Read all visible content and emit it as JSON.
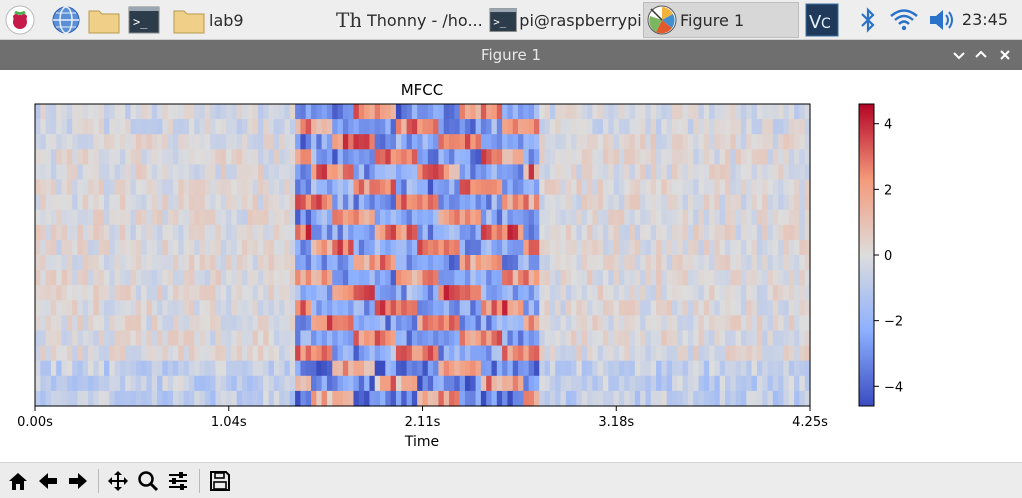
{
  "taskbar": {
    "items": [
      {
        "label": "lab9"
      },
      {
        "label": "Thonny  -  /ho..."
      },
      {
        "label": "pi@raspberrypi..."
      },
      {
        "label": "Figure 1"
      }
    ],
    "clock": "23:45",
    "icons": [
      "raspberry-menu-icon",
      "web-browser-icon",
      "file-manager-icon",
      "terminal-icon",
      "vnc-icon",
      "bluetooth-icon",
      "wifi-icon",
      "volume-icon"
    ]
  },
  "window": {
    "title": "Figure 1"
  },
  "chart_data": {
    "type": "heatmap",
    "title": "MFCC",
    "xlabel": "Time",
    "ylabel": "",
    "x_ticks": [
      "0.00s",
      "1.04s",
      "2.11s",
      "3.18s",
      "4.25s"
    ],
    "x_range": [
      0,
      4.25
    ],
    "colorbar": {
      "ticks": [
        "4",
        "2",
        "0",
        "−2",
        "−4"
      ],
      "range": [
        -4.6,
        4.6
      ],
      "colormap": "coolwarm"
    },
    "rows": 20
  },
  "toolbar": {
    "tools": [
      "home-icon",
      "back-icon",
      "forward-icon",
      "pan-icon",
      "zoom-icon",
      "configure-subplots-icon",
      "save-icon"
    ]
  },
  "colors": {
    "window_title_bg": "#6f6f6f",
    "taskbar_bg": "#eeeeee",
    "cmap_low": "#3b4cc0",
    "cmap_mid": "#dddddd",
    "cmap_high": "#b40426"
  }
}
